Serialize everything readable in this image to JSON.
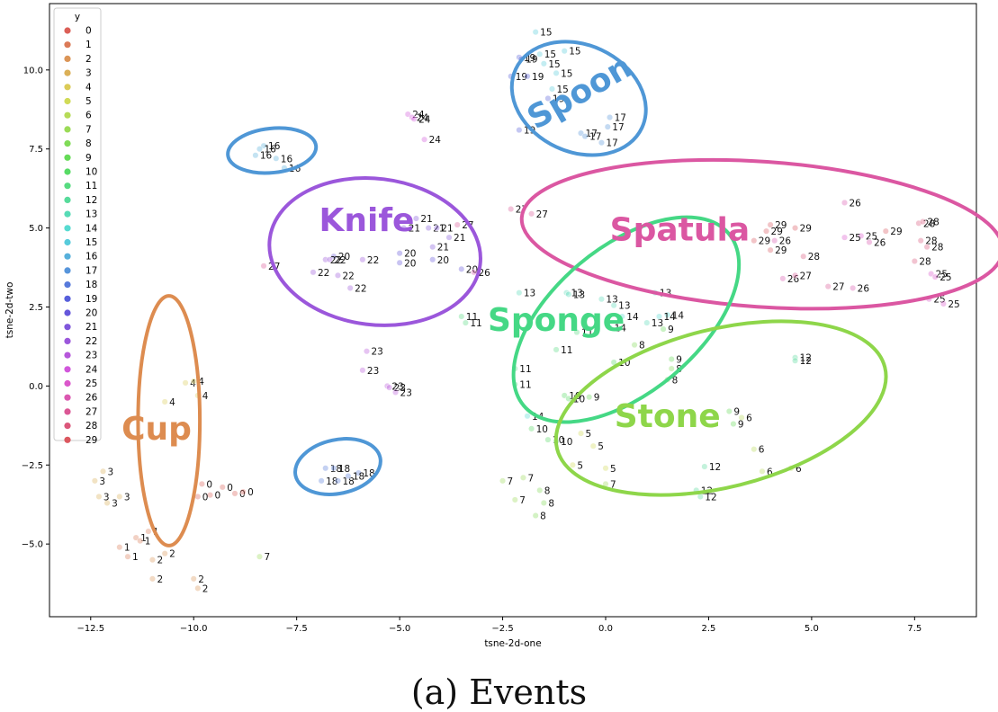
{
  "caption": "(a) Events",
  "chart_data": {
    "type": "scatter",
    "xlabel": "tsne-2d-one",
    "ylabel": "tsne-2d-two",
    "xlim": [
      -13.5,
      9.0
    ],
    "ylim": [
      -7.3,
      12.1
    ],
    "xticks": [
      -12.5,
      -10.0,
      -7.5,
      -5.0,
      -2.5,
      0.0,
      2.5,
      5.0,
      7.5
    ],
    "xtick_labels": [
      "−12.5",
      "−10.0",
      "−7.5",
      "−5.0",
      "−2.5",
      "0.0",
      "2.5",
      "5.0",
      "7.5"
    ],
    "yticks": [
      -5.0,
      -2.5,
      0.0,
      2.5,
      5.0,
      7.5,
      10.0
    ],
    "ytick_labels": [
      "−5.0",
      "−2.5",
      "0.0",
      "2.5",
      "5.0",
      "7.5",
      "10.0"
    ],
    "grid": false,
    "legend": {
      "title": "y",
      "placement": "top-left",
      "entries": [
        {
          "label": "0",
          "color": "#db5f57"
        },
        {
          "label": "1",
          "color": "#db7a57"
        },
        {
          "label": "2",
          "color": "#db9557"
        },
        {
          "label": "3",
          "color": "#dbb057"
        },
        {
          "label": "4",
          "color": "#dbcb57"
        },
        {
          "label": "5",
          "color": "#d1db57"
        },
        {
          "label": "6",
          "color": "#b6db57"
        },
        {
          "label": "7",
          "color": "#9bdb57"
        },
        {
          "label": "8",
          "color": "#80db57"
        },
        {
          "label": "9",
          "color": "#65db57"
        },
        {
          "label": "10",
          "color": "#57db65"
        },
        {
          "label": "11",
          "color": "#57db80"
        },
        {
          "label": "12",
          "color": "#57db9b"
        },
        {
          "label": "13",
          "color": "#57dbb6"
        },
        {
          "label": "14",
          "color": "#57dbd1"
        },
        {
          "label": "15",
          "color": "#57cbdb"
        },
        {
          "label": "16",
          "color": "#57b0db"
        },
        {
          "label": "17",
          "color": "#5795db"
        },
        {
          "label": "18",
          "color": "#577adb"
        },
        {
          "label": "19",
          "color": "#575fdb"
        },
        {
          "label": "20",
          "color": "#6557db"
        },
        {
          "label": "21",
          "color": "#8057db"
        },
        {
          "label": "22",
          "color": "#9b57db"
        },
        {
          "label": "23",
          "color": "#b657db"
        },
        {
          "label": "24",
          "color": "#d157db"
        },
        {
          "label": "25",
          "color": "#db57cb"
        },
        {
          "label": "26",
          "color": "#db57b0"
        },
        {
          "label": "27",
          "color": "#db5795"
        },
        {
          "label": "28",
          "color": "#db577a"
        },
        {
          "label": "29",
          "color": "#db575f"
        }
      ]
    },
    "annotations": [
      {
        "text": "Cup",
        "x": -10.6,
        "y": -1.1,
        "rx": 1.5,
        "ry": 3.95,
        "rot": 0,
        "color": "#dd8c50"
      },
      {
        "text": "Knife",
        "x": -5.6,
        "y": 4.25,
        "rx": 3.55,
        "ry": 3.35,
        "rot": -83,
        "color": "#9b57db"
      },
      {
        "text": "Spoon",
        "x": -0.65,
        "y": 9.1,
        "rx": 2.6,
        "ry": 2.2,
        "rot": -65,
        "color": "#4f97d6"
      },
      {
        "text": "Spatula",
        "x": 3.8,
        "y": 4.8,
        "rx": 11.7,
        "ry": 2.3,
        "rot": 4,
        "color": "#db57a2"
      },
      {
        "text": "Sponge",
        "x": 0.5,
        "y": 2.1,
        "rx": 6.5,
        "ry": 2.3,
        "rot": -40,
        "color": "#45d885"
      },
      {
        "text": "Stone",
        "x": 2.8,
        "y": -0.7,
        "rx": 8.2,
        "ry": 2.5,
        "rot": -14,
        "color": "#8ed64a"
      },
      {
        "text": "",
        "x": -8.1,
        "y": 7.45,
        "rx": 2.15,
        "ry": 0.7,
        "rot": -6,
        "color": "#4f97d6"
      },
      {
        "text": "",
        "x": -6.5,
        "y": -2.55,
        "rx": 2.1,
        "ry": 0.85,
        "rot": -12,
        "color": "#4f97d6"
      }
    ],
    "points": [
      {
        "x": -9.8,
        "y": -3.1,
        "label": "0"
      },
      {
        "x": -9.6,
        "y": -3.45,
        "label": "0"
      },
      {
        "x": -9.3,
        "y": -3.2,
        "label": "0"
      },
      {
        "x": -9.0,
        "y": -3.4,
        "label": "0"
      },
      {
        "x": -8.8,
        "y": -3.35,
        "label": "0"
      },
      {
        "x": -9.9,
        "y": -3.5,
        "label": "0"
      },
      {
        "x": -11.4,
        "y": -4.8,
        "label": "1"
      },
      {
        "x": -11.1,
        "y": -4.6,
        "label": "1"
      },
      {
        "x": -11.3,
        "y": -4.9,
        "label": "1"
      },
      {
        "x": -11.8,
        "y": -5.1,
        "label": "1"
      },
      {
        "x": -11.6,
        "y": -5.4,
        "label": "1"
      },
      {
        "x": -10.7,
        "y": -5.3,
        "label": "2"
      },
      {
        "x": -11.0,
        "y": -6.1,
        "label": "2"
      },
      {
        "x": -10.0,
        "y": -6.1,
        "label": "2"
      },
      {
        "x": -9.9,
        "y": -6.4,
        "label": "2"
      },
      {
        "x": -11.0,
        "y": -5.5,
        "label": "2"
      },
      {
        "x": -12.2,
        "y": -2.7,
        "label": "3"
      },
      {
        "x": -12.1,
        "y": -3.7,
        "label": "3"
      },
      {
        "x": -12.3,
        "y": -3.5,
        "label": "3"
      },
      {
        "x": -11.8,
        "y": -3.5,
        "label": "3"
      },
      {
        "x": -12.4,
        "y": -3.0,
        "label": "3"
      },
      {
        "x": -10.2,
        "y": 0.1,
        "label": "4"
      },
      {
        "x": -10.0,
        "y": 0.15,
        "label": "4"
      },
      {
        "x": -9.9,
        "y": -0.3,
        "label": "4"
      },
      {
        "x": -10.7,
        "y": -0.5,
        "label": "4"
      },
      {
        "x": -0.3,
        "y": -1.9,
        "label": "5"
      },
      {
        "x": 0.0,
        "y": -2.6,
        "label": "5"
      },
      {
        "x": -0.8,
        "y": -2.5,
        "label": "5"
      },
      {
        "x": -0.6,
        "y": -1.5,
        "label": "5"
      },
      {
        "x": 3.8,
        "y": -2.7,
        "label": "6"
      },
      {
        "x": 3.3,
        "y": -1.0,
        "label": "6"
      },
      {
        "x": 4.5,
        "y": -2.6,
        "label": "6"
      },
      {
        "x": 3.6,
        "y": -2.0,
        "label": "6"
      },
      {
        "x": -2.5,
        "y": -3.0,
        "label": "7"
      },
      {
        "x": -2.2,
        "y": -3.6,
        "label": "7"
      },
      {
        "x": -2.0,
        "y": -2.9,
        "label": "7"
      },
      {
        "x": -8.4,
        "y": -5.4,
        "label": "7"
      },
      {
        "x": 0.0,
        "y": -3.1,
        "label": "7"
      },
      {
        "x": -1.6,
        "y": -3.3,
        "label": "8"
      },
      {
        "x": -1.5,
        "y": -3.7,
        "label": "8"
      },
      {
        "x": -1.7,
        "y": -4.1,
        "label": "8"
      },
      {
        "x": 0.7,
        "y": 1.3,
        "label": "8"
      },
      {
        "x": 1.5,
        "y": 0.2,
        "label": "8"
      },
      {
        "x": 1.6,
        "y": 0.55,
        "label": "8"
      },
      {
        "x": -0.4,
        "y": -0.35,
        "label": "9"
      },
      {
        "x": 1.6,
        "y": 0.85,
        "label": "9"
      },
      {
        "x": 3.0,
        "y": -0.8,
        "label": "9"
      },
      {
        "x": 3.1,
        "y": -1.2,
        "label": "9"
      },
      {
        "x": 1.4,
        "y": 1.8,
        "label": "9"
      },
      {
        "x": -1.0,
        "y": -0.3,
        "label": "10"
      },
      {
        "x": -0.9,
        "y": -0.4,
        "label": "10"
      },
      {
        "x": -1.8,
        "y": -1.35,
        "label": "10"
      },
      {
        "x": -1.4,
        "y": -1.7,
        "label": "10"
      },
      {
        "x": -1.2,
        "y": -1.75,
        "label": "10"
      },
      {
        "x": 0.2,
        "y": 0.75,
        "label": "10"
      },
      {
        "x": -3.5,
        "y": 2.2,
        "label": "11"
      },
      {
        "x": -3.4,
        "y": 2.0,
        "label": "11"
      },
      {
        "x": -1.2,
        "y": 1.15,
        "label": "11"
      },
      {
        "x": -2.2,
        "y": 0.55,
        "label": "11"
      },
      {
        "x": -2.2,
        "y": 0.05,
        "label": "11"
      },
      {
        "x": -0.7,
        "y": 1.7,
        "label": "11"
      },
      {
        "x": 4.6,
        "y": 0.9,
        "label": "12"
      },
      {
        "x": 4.6,
        "y": 0.8,
        "label": "12"
      },
      {
        "x": 2.4,
        "y": -2.55,
        "label": "12"
      },
      {
        "x": 2.2,
        "y": -3.3,
        "label": "12"
      },
      {
        "x": 2.3,
        "y": -3.5,
        "label": "12"
      },
      {
        "x": -2.1,
        "y": 2.95,
        "label": "13"
      },
      {
        "x": -0.95,
        "y": 2.95,
        "label": "13"
      },
      {
        "x": -0.9,
        "y": 2.9,
        "label": "13"
      },
      {
        "x": -0.1,
        "y": 2.75,
        "label": "13"
      },
      {
        "x": 0.2,
        "y": 2.55,
        "label": "13"
      },
      {
        "x": 1.0,
        "y": 2.0,
        "label": "13"
      },
      {
        "x": 1.2,
        "y": 2.95,
        "label": "13"
      },
      {
        "x": -1.9,
        "y": -0.95,
        "label": "14"
      },
      {
        "x": 0.4,
        "y": 2.2,
        "label": "14"
      },
      {
        "x": 1.5,
        "y": 2.25,
        "label": "14"
      },
      {
        "x": 1.3,
        "y": 2.2,
        "label": "14"
      },
      {
        "x": 0.1,
        "y": 1.85,
        "label": "14"
      },
      {
        "x": -1.7,
        "y": 11.2,
        "label": "15"
      },
      {
        "x": -1.6,
        "y": 10.5,
        "label": "15"
      },
      {
        "x": -1.5,
        "y": 10.2,
        "label": "15"
      },
      {
        "x": -1.0,
        "y": 10.6,
        "label": "15"
      },
      {
        "x": -1.2,
        "y": 9.9,
        "label": "15"
      },
      {
        "x": -1.3,
        "y": 9.4,
        "label": "15"
      },
      {
        "x": -8.5,
        "y": 7.3,
        "label": "16"
      },
      {
        "x": -8.3,
        "y": 7.6,
        "label": "16"
      },
      {
        "x": -8.0,
        "y": 7.2,
        "label": "16"
      },
      {
        "x": -7.8,
        "y": 6.9,
        "label": "16"
      },
      {
        "x": -8.4,
        "y": 7.5,
        "label": "16"
      },
      {
        "x": -0.6,
        "y": 8.0,
        "label": "17"
      },
      {
        "x": -0.5,
        "y": 7.9,
        "label": "17"
      },
      {
        "x": 0.1,
        "y": 8.5,
        "label": "17"
      },
      {
        "x": 0.05,
        "y": 8.2,
        "label": "17"
      },
      {
        "x": -0.1,
        "y": 7.7,
        "label": "17"
      },
      {
        "x": -6.8,
        "y": -2.6,
        "label": "18"
      },
      {
        "x": -6.6,
        "y": -2.6,
        "label": "18"
      },
      {
        "x": -6.9,
        "y": -3.0,
        "label": "18"
      },
      {
        "x": -6.5,
        "y": -3.0,
        "label": "18"
      },
      {
        "x": -6.0,
        "y": -2.75,
        "label": "18"
      },
      {
        "x": -6.25,
        "y": -2.85,
        "label": "18"
      },
      {
        "x": -2.1,
        "y": 10.4,
        "label": "19"
      },
      {
        "x": -2.05,
        "y": 10.35,
        "label": "19"
      },
      {
        "x": -2.3,
        "y": 9.8,
        "label": "19"
      },
      {
        "x": -1.9,
        "y": 9.8,
        "label": "19"
      },
      {
        "x": -1.4,
        "y": 9.1,
        "label": "19"
      },
      {
        "x": -2.1,
        "y": 8.1,
        "label": "19"
      },
      {
        "x": -5.0,
        "y": 3.9,
        "label": "20"
      },
      {
        "x": -4.2,
        "y": 4.0,
        "label": "20"
      },
      {
        "x": -5.0,
        "y": 4.2,
        "label": "20"
      },
      {
        "x": -3.5,
        "y": 3.7,
        "label": "20"
      },
      {
        "x": -6.6,
        "y": 4.1,
        "label": "20"
      },
      {
        "x": -4.9,
        "y": 5.0,
        "label": "21"
      },
      {
        "x": -4.3,
        "y": 5.0,
        "label": "21"
      },
      {
        "x": -4.6,
        "y": 5.3,
        "label": "21"
      },
      {
        "x": -4.1,
        "y": 5.0,
        "label": "21"
      },
      {
        "x": -4.2,
        "y": 4.4,
        "label": "21"
      },
      {
        "x": -3.8,
        "y": 4.7,
        "label": "21"
      },
      {
        "x": -6.8,
        "y": 4.0,
        "label": "22"
      },
      {
        "x": -6.7,
        "y": 4.0,
        "label": "22"
      },
      {
        "x": -6.5,
        "y": 3.5,
        "label": "22"
      },
      {
        "x": -6.2,
        "y": 3.1,
        "label": "22"
      },
      {
        "x": -5.9,
        "y": 4.0,
        "label": "22"
      },
      {
        "x": -7.1,
        "y": 3.6,
        "label": "22"
      },
      {
        "x": -5.8,
        "y": 1.1,
        "label": "23"
      },
      {
        "x": -5.9,
        "y": 0.5,
        "label": "23"
      },
      {
        "x": -5.3,
        "y": 0.0,
        "label": "23"
      },
      {
        "x": -5.25,
        "y": -0.05,
        "label": "23"
      },
      {
        "x": -5.1,
        "y": -0.2,
        "label": "23"
      },
      {
        "x": -4.8,
        "y": 8.6,
        "label": "24"
      },
      {
        "x": -4.7,
        "y": 8.5,
        "label": "24"
      },
      {
        "x": -4.65,
        "y": 8.45,
        "label": "24"
      },
      {
        "x": -4.4,
        "y": 7.8,
        "label": "24"
      },
      {
        "x": 7.9,
        "y": 3.55,
        "label": "25"
      },
      {
        "x": 8.0,
        "y": 3.45,
        "label": "25"
      },
      {
        "x": 7.85,
        "y": 2.75,
        "label": "25"
      },
      {
        "x": 6.2,
        "y": 4.75,
        "label": "25"
      },
      {
        "x": 5.8,
        "y": 4.7,
        "label": "25"
      },
      {
        "x": 8.2,
        "y": 2.6,
        "label": "25"
      },
      {
        "x": 5.8,
        "y": 5.8,
        "label": "26"
      },
      {
        "x": 4.1,
        "y": 4.6,
        "label": "26"
      },
      {
        "x": 6.4,
        "y": 4.55,
        "label": "26"
      },
      {
        "x": 4.3,
        "y": 3.4,
        "label": "26"
      },
      {
        "x": 6.0,
        "y": 3.1,
        "label": "26"
      },
      {
        "x": -3.2,
        "y": 3.6,
        "label": "26"
      },
      {
        "x": -2.3,
        "y": 5.6,
        "label": "27"
      },
      {
        "x": -1.8,
        "y": 5.45,
        "label": "27"
      },
      {
        "x": -8.3,
        "y": 3.8,
        "label": "27"
      },
      {
        "x": -3.6,
        "y": 5.1,
        "label": "27"
      },
      {
        "x": 4.6,
        "y": 3.5,
        "label": "27"
      },
      {
        "x": 5.4,
        "y": 3.15,
        "label": "27"
      },
      {
        "x": 7.6,
        "y": 5.15,
        "label": "28"
      },
      {
        "x": 7.7,
        "y": 5.2,
        "label": "28"
      },
      {
        "x": 7.65,
        "y": 4.6,
        "label": "28"
      },
      {
        "x": 7.8,
        "y": 4.4,
        "label": "28"
      },
      {
        "x": 7.5,
        "y": 3.95,
        "label": "28"
      },
      {
        "x": 4.8,
        "y": 4.1,
        "label": "28"
      },
      {
        "x": 3.6,
        "y": 4.6,
        "label": "29"
      },
      {
        "x": 3.9,
        "y": 4.9,
        "label": "29"
      },
      {
        "x": 4.0,
        "y": 5.1,
        "label": "29"
      },
      {
        "x": 4.6,
        "y": 5.0,
        "label": "29"
      },
      {
        "x": 4.0,
        "y": 4.3,
        "label": "29"
      },
      {
        "x": 6.8,
        "y": 4.9,
        "label": "29"
      }
    ]
  }
}
